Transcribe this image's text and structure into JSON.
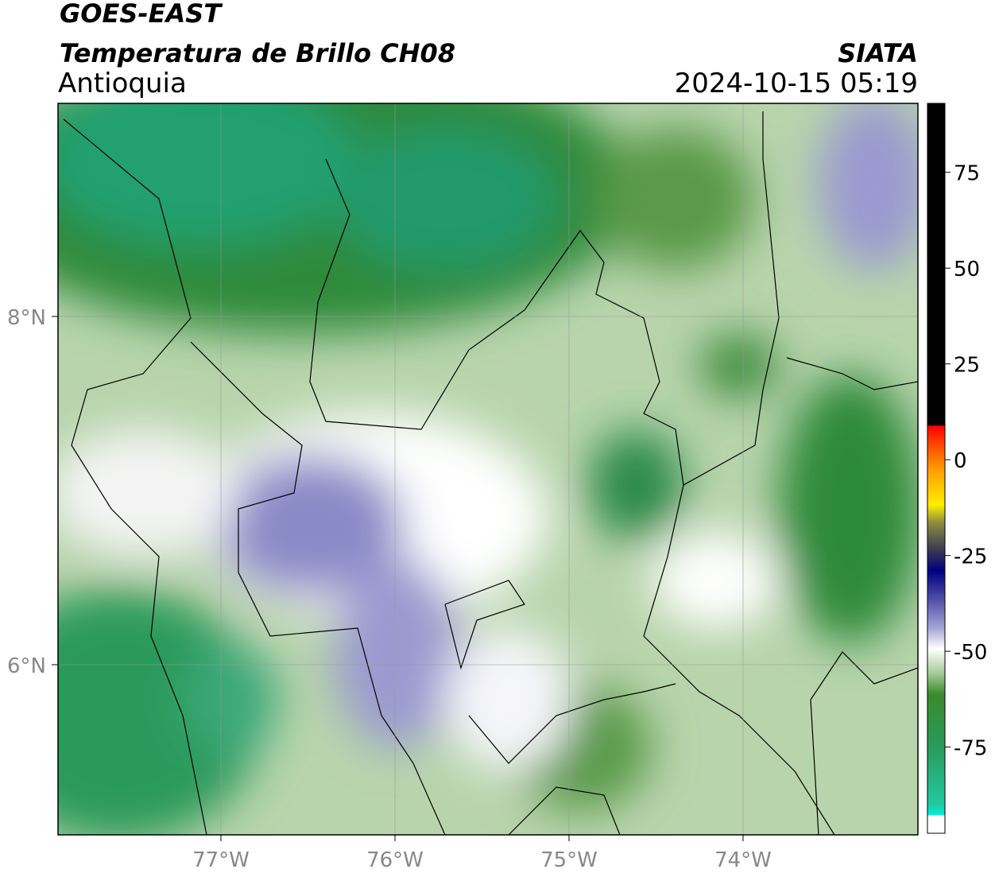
{
  "header": {
    "satellite": "GOES-EAST",
    "product": "Temperatura de Brillo CH08",
    "org": "SIATA",
    "region": "Antioquia",
    "datetime": "2024-10-15 05:19"
  },
  "map": {
    "lon_ticks": [
      "77°W",
      "76°W",
      "75°W",
      "74°W"
    ],
    "lat_ticks": [
      "8°N",
      "6°N"
    ]
  },
  "colorbar": {
    "lim": [
      -97.5,
      93
    ],
    "ticks": [
      75,
      50,
      25,
      0,
      -25,
      -50,
      -75
    ]
  }
}
